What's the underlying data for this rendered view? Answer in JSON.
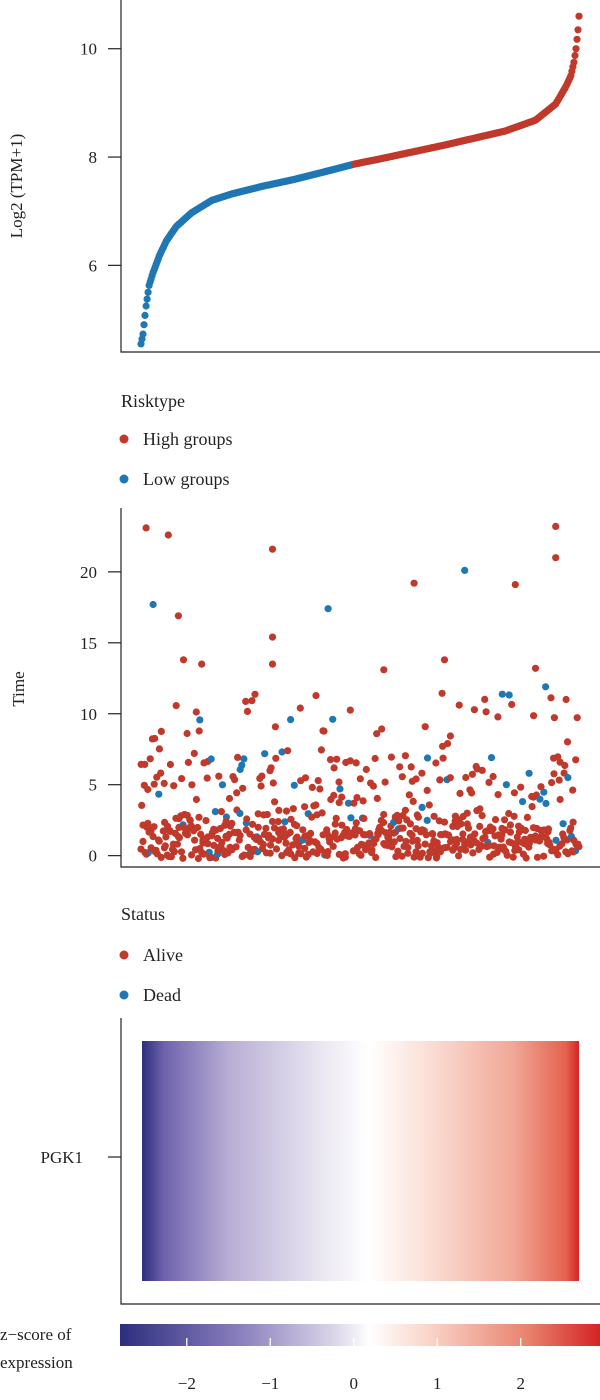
{
  "colors": {
    "high": "#c0392b",
    "low": "#1f77b4",
    "alive": "#c0392b",
    "dead": "#1f77b4",
    "heat_low": "#2c2e7e",
    "heat_mid": "#ffffff",
    "heat_high": "#d42424"
  },
  "chart_data": [
    {
      "type": "scatter",
      "ylabel": "Log2 (TPM+1)",
      "xlabel": "",
      "ylim": [
        4.4,
        10.9
      ],
      "yticks": [
        6,
        8,
        10
      ],
      "n_samples": 434,
      "high_start_index": 211,
      "curve_samples": [
        {
          "i": 0,
          "v": 4.55
        },
        {
          "i": 2,
          "v": 4.73
        },
        {
          "i": 5,
          "v": 5.25
        },
        {
          "i": 8,
          "v": 5.63
        },
        {
          "i": 12,
          "v": 5.87
        },
        {
          "i": 18,
          "v": 6.17
        },
        {
          "i": 25,
          "v": 6.45
        },
        {
          "i": 35,
          "v": 6.72
        },
        {
          "i": 50,
          "v": 6.97
        },
        {
          "i": 70,
          "v": 7.2
        },
        {
          "i": 90,
          "v": 7.32
        },
        {
          "i": 120,
          "v": 7.46
        },
        {
          "i": 150,
          "v": 7.58
        },
        {
          "i": 180,
          "v": 7.72
        },
        {
          "i": 211,
          "v": 7.87
        },
        {
          "i": 240,
          "v": 7.98
        },
        {
          "i": 270,
          "v": 8.1
        },
        {
          "i": 300,
          "v": 8.22
        },
        {
          "i": 330,
          "v": 8.35
        },
        {
          "i": 360,
          "v": 8.48
        },
        {
          "i": 390,
          "v": 8.68
        },
        {
          "i": 410,
          "v": 8.98
        },
        {
          "i": 420,
          "v": 9.3
        },
        {
          "i": 425,
          "v": 9.5
        },
        {
          "i": 428,
          "v": 9.75
        },
        {
          "i": 430,
          "v": 10.0
        },
        {
          "i": 432,
          "v": 10.35
        },
        {
          "i": 433,
          "v": 10.6
        }
      ]
    },
    {
      "type": "scatter",
      "ylabel": "Time",
      "xlabel": "",
      "ylim": [
        -0.8,
        24.5
      ],
      "yticks": [
        0,
        5,
        10,
        15,
        20
      ],
      "n_samples": 434,
      "highlighted_points": [
        {
          "i": 5,
          "time": 23.1,
          "status": "Alive"
        },
        {
          "i": 27,
          "time": 22.6,
          "status": "Alive"
        },
        {
          "i": 130,
          "time": 21.6,
          "status": "Alive"
        },
        {
          "i": 410,
          "time": 23.2,
          "status": "Alive"
        },
        {
          "i": 410,
          "time": 21.0,
          "status": "Alive"
        },
        {
          "i": 270,
          "time": 19.2,
          "status": "Alive"
        },
        {
          "i": 370,
          "time": 19.1,
          "status": "Alive"
        },
        {
          "i": 320,
          "time": 20.1,
          "status": "Dead"
        },
        {
          "i": 12,
          "time": 17.7,
          "status": "Dead"
        },
        {
          "i": 185,
          "time": 17.4,
          "status": "Dead"
        },
        {
          "i": 37,
          "time": 16.9,
          "status": "Alive"
        },
        {
          "i": 130,
          "time": 15.4,
          "status": "Alive"
        },
        {
          "i": 130,
          "time": 13.5,
          "status": "Alive"
        },
        {
          "i": 42,
          "time": 13.8,
          "status": "Alive"
        },
        {
          "i": 60,
          "time": 13.5,
          "status": "Alive"
        },
        {
          "i": 240,
          "time": 13.1,
          "status": "Alive"
        },
        {
          "i": 390,
          "time": 13.2,
          "status": "Alive"
        },
        {
          "i": 300,
          "time": 13.8,
          "status": "Alive"
        },
        {
          "i": 400,
          "time": 11.9,
          "status": "Dead"
        }
      ]
    },
    {
      "type": "heatmap",
      "rows": [
        "PGK1"
      ],
      "n_samples": 434,
      "colorbar": {
        "title_lines": [
          "z−score of",
          "expression"
        ],
        "range": [
          -2.8,
          2.95
        ],
        "ticks": [
          -2,
          -1,
          0,
          1,
          2
        ],
        "tick_labels": [
          "−2",
          "−1",
          "0",
          "1",
          "2"
        ]
      }
    }
  ],
  "legends": {
    "risk": {
      "title": "Risktype",
      "items": [
        {
          "label": "High groups",
          "color_key": "high"
        },
        {
          "label": "Low groups",
          "color_key": "low"
        }
      ]
    },
    "status": {
      "title": "Status",
      "items": [
        {
          "label": "Alive",
          "color_key": "alive"
        },
        {
          "label": "Dead",
          "color_key": "dead"
        }
      ]
    }
  }
}
